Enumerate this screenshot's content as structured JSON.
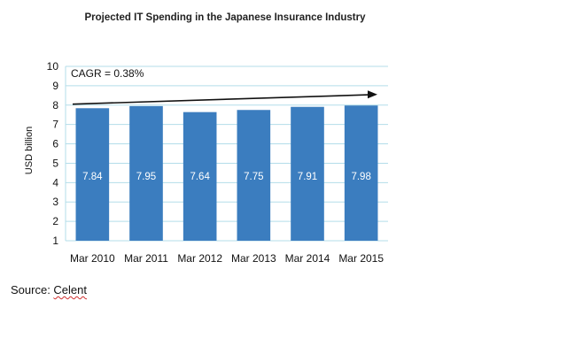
{
  "chart_data": {
    "type": "bar",
    "title": "Projected IT Spending in the Japanese Insurance Industry",
    "xlabel": "",
    "ylabel": "USD billion",
    "categories": [
      "Mar 2010",
      "Mar 2011",
      "Mar 2012",
      "Mar 2013",
      "Mar 2014",
      "Mar 2015"
    ],
    "values": [
      7.84,
      7.95,
      7.64,
      7.75,
      7.91,
      7.98
    ],
    "data_labels": [
      "7.84",
      "7.95",
      "7.64",
      "7.75",
      "7.91",
      "7.98"
    ],
    "ylim": [
      1,
      10
    ],
    "yticks": [
      "1",
      "2",
      "3",
      "4",
      "5",
      "6",
      "7",
      "8",
      "9",
      "10"
    ],
    "grid": true,
    "bar_color": "#3b7dbf",
    "annotation": {
      "text": "CAGR = 0.38%",
      "trend_arrow_from": 8.05,
      "trend_arrow_to": 8.55
    }
  },
  "source": {
    "prefix": "Source: ",
    "name": "Celent"
  }
}
